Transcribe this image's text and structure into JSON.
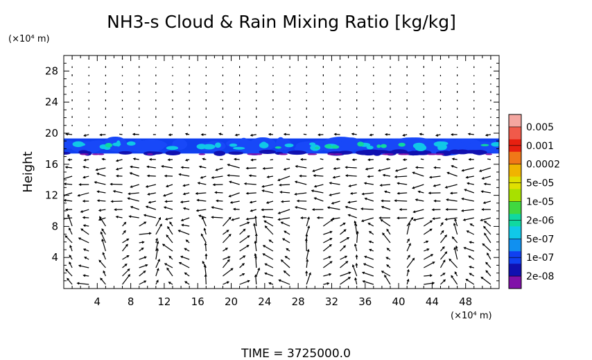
{
  "chart_data": {
    "type": "heatmap",
    "title": "NH3-s Cloud & Rain Mixing Ratio [kg/kg]",
    "ylabel": "Height",
    "x_unit": "(×10⁴ m)",
    "y_unit": "(×10⁴ m)",
    "xlim": [
      0,
      52
    ],
    "ylim": [
      0,
      30
    ],
    "x_ticks": [
      4,
      8,
      12,
      16,
      20,
      24,
      28,
      32,
      36,
      40,
      44,
      48
    ],
    "y_ticks": [
      4,
      8,
      12,
      16,
      20,
      24,
      28
    ],
    "x_tick_labels": [
      "4",
      "8",
      "12",
      "16",
      "20",
      "24",
      "28",
      "32",
      "36",
      "40",
      "44",
      "48"
    ],
    "y_tick_labels": [
      "4",
      "8",
      "12",
      "16",
      "20",
      "24",
      "28"
    ],
    "cloud_layer": {
      "y_bottom": 17.2,
      "y_top": 19.5
    },
    "colorbar": {
      "labels": [
        "0.005",
        "0.001",
        "0.0002",
        "5e-05",
        "1e-05",
        "2e-06",
        "5e-07",
        "1e-07",
        "2e-08"
      ],
      "colors": [
        "#f4a6a0",
        "#f05a4a",
        "#e82010",
        "#f07818",
        "#f0b400",
        "#e0e000",
        "#a8e000",
        "#40d840",
        "#10d8a0",
        "#10c8e8",
        "#1090f0",
        "#1040f0",
        "#1010b0",
        "#8010a8"
      ]
    },
    "footer": "TIME = 3725000.0"
  }
}
